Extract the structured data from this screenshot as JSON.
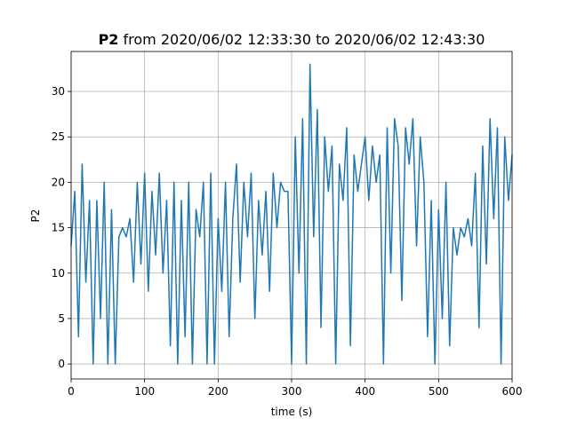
{
  "chart_data": {
    "type": "line",
    "title_bold": "P2",
    "title": "from 2020/06/02 12:33:30 to 2020/06/02 12:43:30",
    "xlabel": "time (s)",
    "ylabel": "P2",
    "xlim": [
      0,
      600
    ],
    "ylim": [
      -1.65,
      34.4
    ],
    "xticks": [
      0,
      100,
      200,
      300,
      400,
      500,
      600
    ],
    "yticks": [
      0,
      5,
      10,
      15,
      20,
      25,
      30
    ],
    "grid": true,
    "series": [
      {
        "color": "#1f77b4",
        "x": [
          0,
          5,
          10,
          15,
          20,
          25,
          30,
          35,
          40,
          45,
          50,
          55,
          60,
          65,
          70,
          75,
          80,
          85,
          90,
          95,
          100,
          105,
          110,
          115,
          120,
          125,
          130,
          135,
          140,
          145,
          150,
          155,
          160,
          165,
          170,
          175,
          180,
          185,
          190,
          195,
          200,
          205,
          210,
          215,
          220,
          225,
          230,
          235,
          240,
          245,
          250,
          255,
          260,
          265,
          270,
          275,
          280,
          285,
          290,
          295,
          300,
          305,
          310,
          315,
          320,
          325,
          330,
          335,
          340,
          345,
          350,
          355,
          360,
          365,
          370,
          375,
          380,
          385,
          390,
          395,
          400,
          405,
          410,
          415,
          420,
          425,
          430,
          435,
          440,
          445,
          450,
          455,
          460,
          465,
          470,
          475,
          480,
          485,
          490,
          495,
          500,
          505,
          510,
          515,
          520,
          525,
          530,
          535,
          540,
          545,
          550,
          555,
          560,
          565,
          570,
          575,
          580,
          585,
          590,
          595,
          600
        ],
        "values": [
          13,
          19,
          3,
          22,
          9,
          18,
          0,
          18,
          5,
          20,
          0,
          17,
          0,
          14,
          15,
          14,
          16,
          9,
          20,
          11,
          21,
          8,
          19,
          12,
          21,
          10,
          18,
          2,
          20,
          0,
          18,
          3,
          20,
          0,
          17,
          14,
          20,
          0,
          21,
          0,
          16,
          8,
          20,
          3,
          16,
          22,
          9,
          20,
          14,
          21,
          5,
          18,
          12,
          19,
          8,
          21,
          15,
          20,
          19,
          19,
          0,
          25,
          10,
          27,
          0,
          33,
          14,
          28,
          4,
          25,
          19,
          24,
          0,
          22,
          18,
          26,
          2,
          23,
          19,
          22,
          25,
          18,
          24,
          20,
          23,
          0,
          26,
          10,
          27,
          24,
          7,
          26,
          22,
          27,
          13,
          25,
          20,
          3,
          18,
          0,
          17,
          5,
          20,
          2,
          15,
          12,
          15,
          14,
          16,
          13,
          21,
          4,
          24,
          11,
          27,
          16,
          26,
          0,
          25,
          18,
          23
        ]
      }
    ]
  }
}
